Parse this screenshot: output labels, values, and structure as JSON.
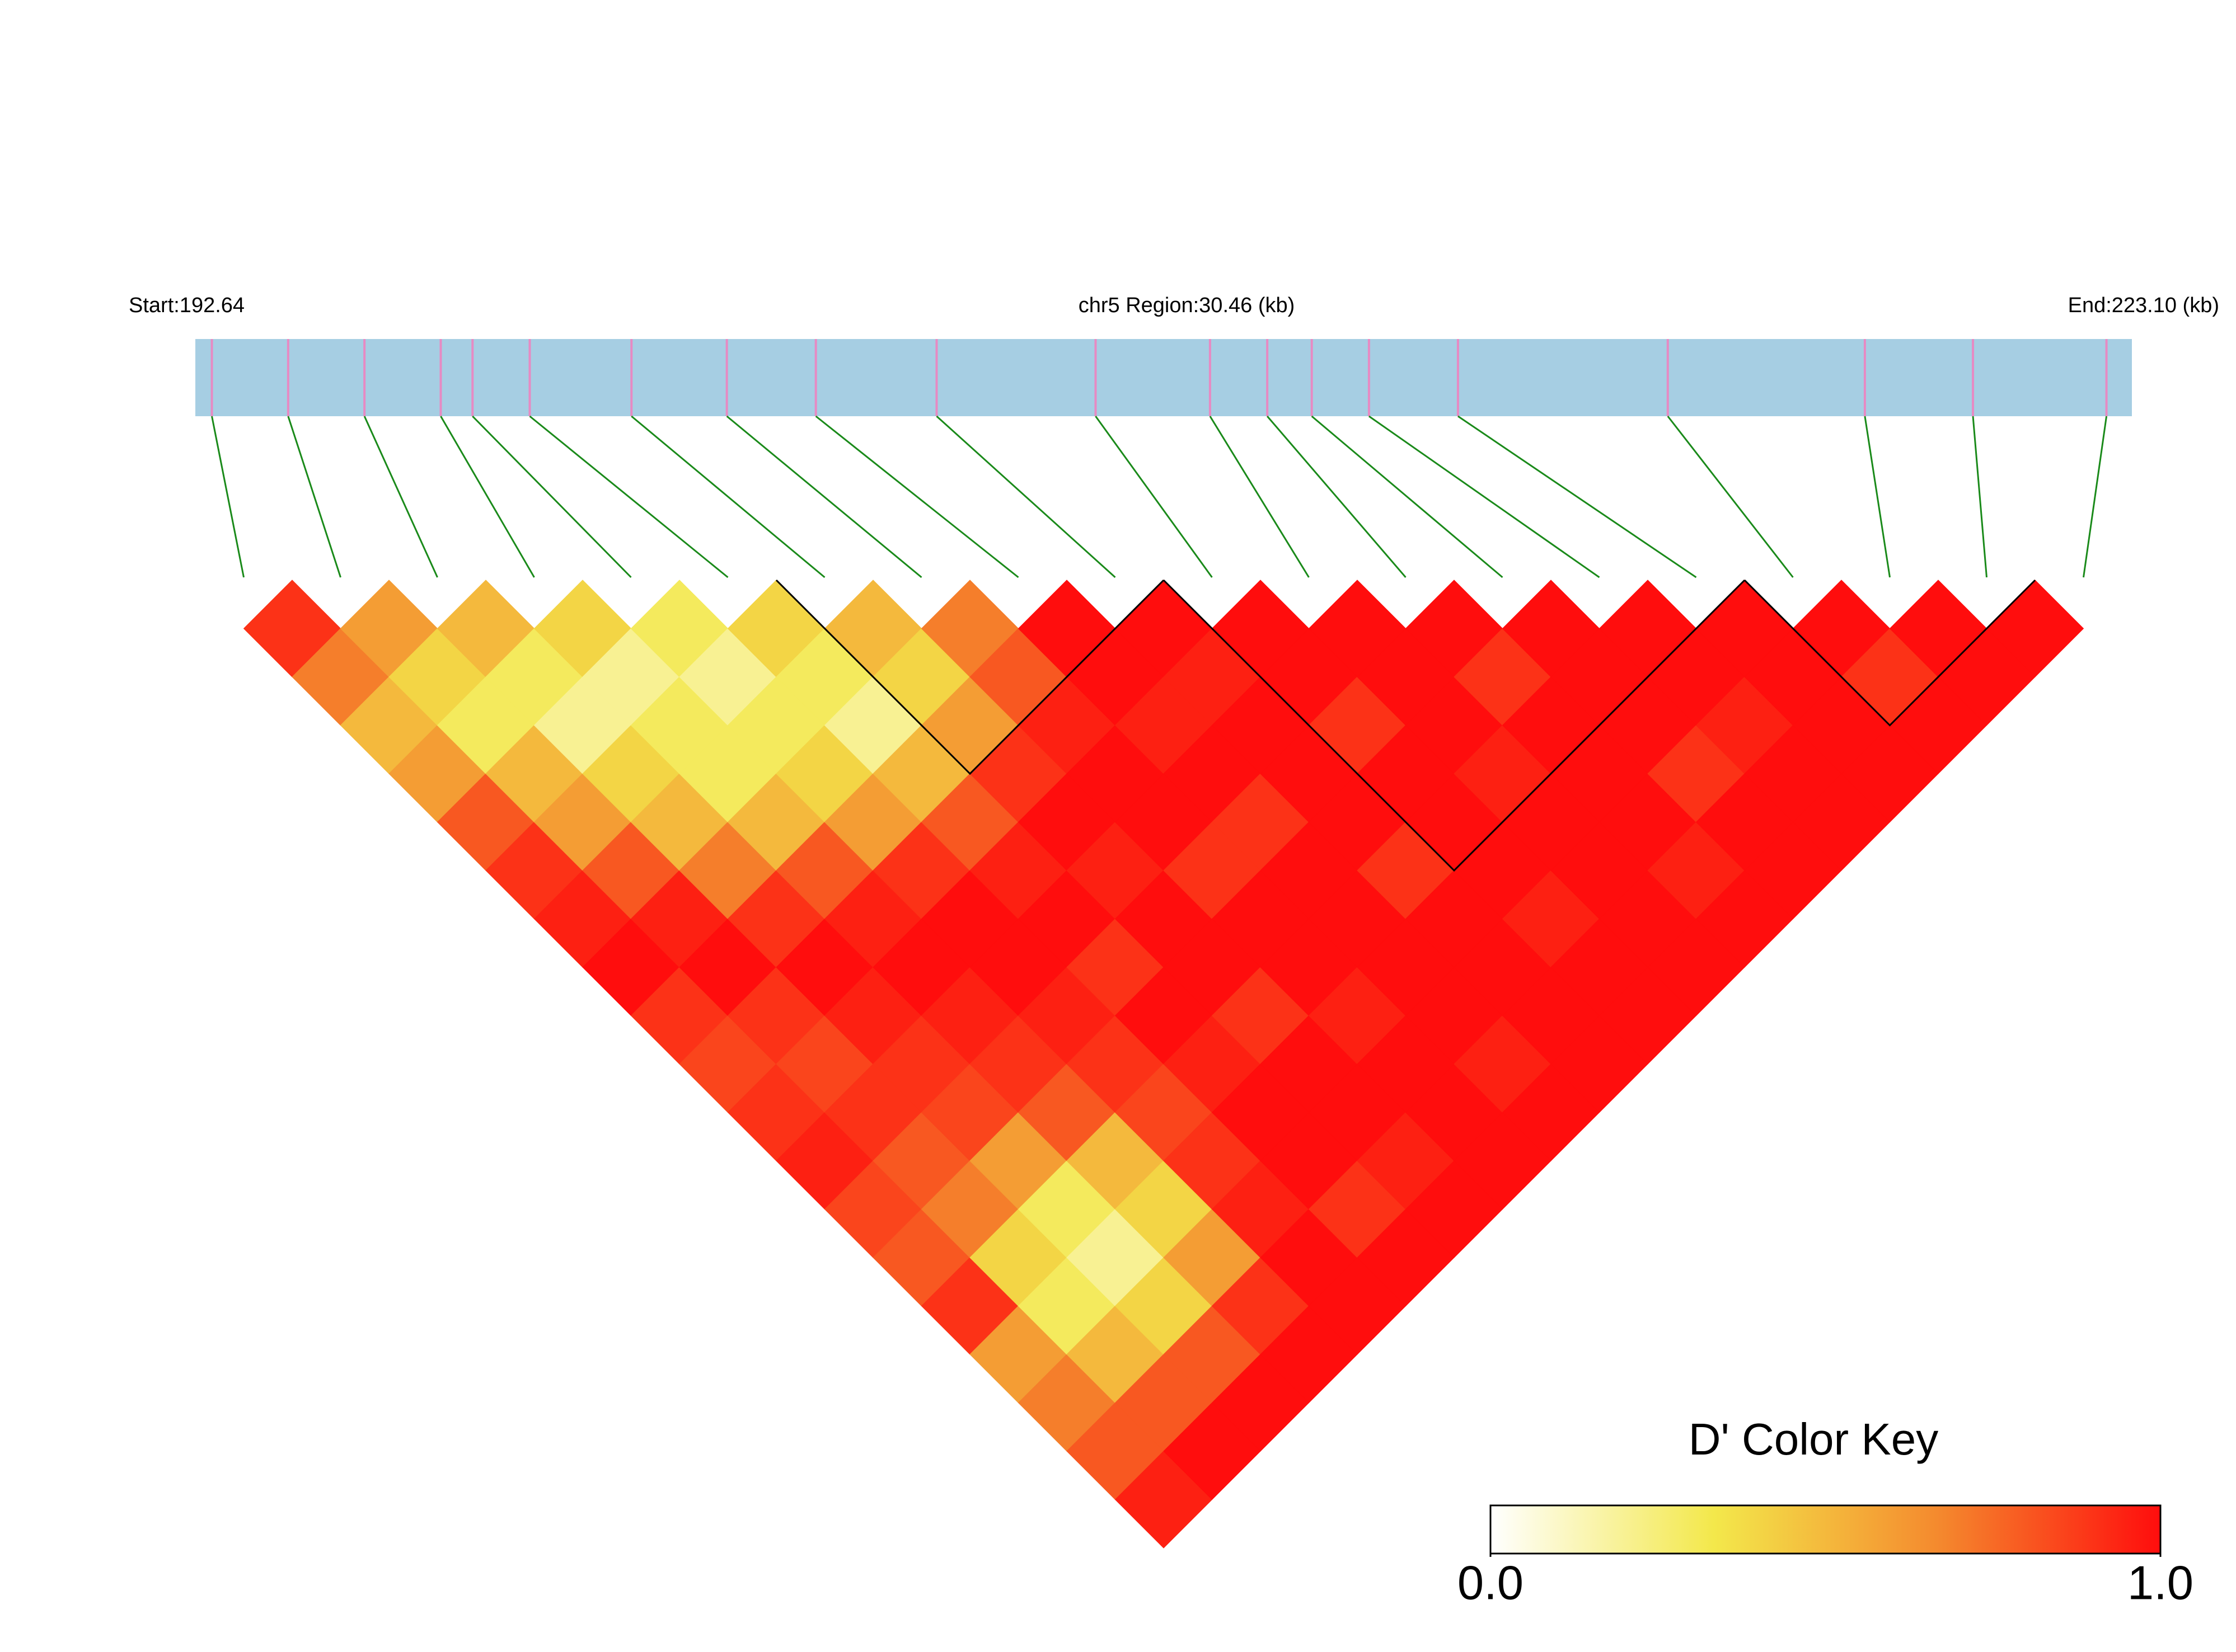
{
  "chart_data": {
    "type": "ld-heatmap",
    "title": "chr5 Region:30.46 (kb)",
    "start_label": "Start:192.64",
    "end_label": "End:223.10 (kb)",
    "xlim": [
      192.64,
      223.1
    ],
    "snp_positions": [
      192.9,
      194.1,
      195.3,
      196.5,
      197.0,
      197.9,
      199.5,
      201.0,
      202.4,
      204.3,
      206.8,
      208.6,
      209.5,
      210.2,
      211.1,
      212.5,
      215.8,
      218.9,
      220.6,
      222.7
    ],
    "track_color": "#a6cee3",
    "snp_color": "#e78ac3",
    "connector_color": "#1a8a1a",
    "dprime": [
      [
        0.9,
        0.7,
        0.5,
        0.6,
        0.8,
        0.9,
        0.95,
        1,
        0.9,
        0.85,
        0.9,
        0.95,
        0.85,
        0.8,
        0.9,
        0.6,
        0.7,
        0.8,
        0.95
      ],
      [
        0.6,
        0.4,
        0.3,
        0.5,
        0.6,
        0.8,
        0.95,
        1,
        0.9,
        0.85,
        0.9,
        0.8,
        0.7,
        0.4,
        0.3,
        0.5,
        0.8,
        1
      ],
      [
        0.5,
        0.3,
        0.2,
        0.4,
        0.5,
        0.7,
        0.9,
        1,
        0.95,
        0.9,
        0.85,
        0.6,
        0.3,
        0.2,
        0.4,
        0.8,
        1
      ],
      [
        0.4,
        0.2,
        0.3,
        0.3,
        0.5,
        0.8,
        0.95,
        1,
        0.95,
        0.9,
        0.8,
        0.5,
        0.4,
        0.6,
        0.9,
        1
      ],
      [
        0.3,
        0.2,
        0.3,
        0.4,
        0.6,
        0.9,
        1,
        1,
        0.95,
        0.9,
        0.85,
        0.9,
        0.95,
        1,
        1
      ],
      [
        0.4,
        0.3,
        0.2,
        0.5,
        0.8,
        0.95,
        1,
        0.9,
        1,
        0.95,
        1,
        1,
        0.9,
        1
      ],
      [
        0.5,
        0.4,
        0.6,
        0.9,
        1,
        0.95,
        1,
        1,
        0.9,
        1,
        1,
        0.95,
        1
      ],
      [
        0.7,
        0.8,
        0.95,
        1,
        1,
        0.9,
        1,
        1,
        0.95,
        1,
        1,
        1
      ],
      [
        1,
        1,
        0.95,
        1,
        0.9,
        1,
        1,
        1,
        1,
        0.95,
        1
      ],
      [
        1,
        0.95,
        1,
        1,
        1,
        0.9,
        1,
        1,
        1,
        1
      ],
      [
        1,
        1,
        0.9,
        1,
        1,
        1,
        0.95,
        1,
        1
      ],
      [
        1,
        1,
        1,
        0.95,
        1,
        1,
        1,
        1
      ],
      [
        1,
        0.9,
        1,
        1,
        1,
        0.95,
        1
      ],
      [
        1,
        1,
        1,
        0.9,
        1,
        1
      ],
      [
        1,
        1,
        0.95,
        1,
        1
      ],
      [
        1,
        1,
        1,
        1
      ],
      [
        1,
        0.9,
        1
      ],
      [
        1,
        1
      ],
      [
        1
      ]
    ],
    "ld_blocks": [
      [
        6,
        9
      ],
      [
        10,
        15
      ],
      [
        16,
        18
      ]
    ],
    "colorbar": {
      "title": "D' Color Key",
      "lim": [
        0,
        1
      ],
      "ticks": [
        {
          "value": 0,
          "label": "0.0"
        },
        {
          "value": 1,
          "label": "1.0"
        }
      ],
      "colorscale": [
        "#ffffff",
        "#f3e84b",
        "#f48a2e",
        "#ff0d0d"
      ]
    }
  }
}
